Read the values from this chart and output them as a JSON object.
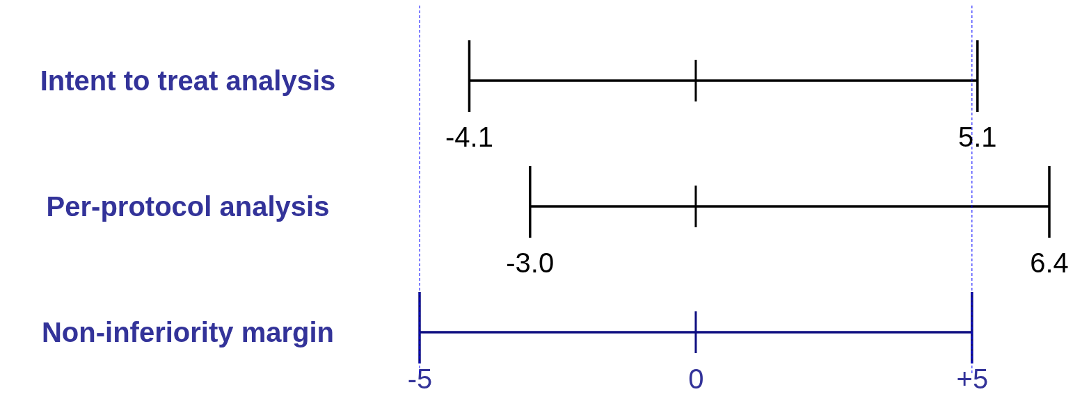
{
  "chart_data": {
    "type": "bar",
    "orientation": "horizontal",
    "categories": [
      "Intent to treat analysis",
      "Per-protocol analysis",
      "Non-inferiority margin"
    ],
    "series": [
      {
        "type": "bar",
        "base": [
          -4.1,
          -3.0,
          -5
        ],
        "values": [
          9.2,
          9.4,
          10
        ],
        "colors": [
          "#000000",
          "#000000",
          "#0d0d80"
        ]
      }
    ],
    "xlim": [
      -5,
      6.4
    ],
    "grid": false,
    "xticks": [
      -5,
      0,
      {
        "value": 5,
        "label": "+5"
      }
    ],
    "ref_lines": [
      {
        "axis": "x",
        "value": -5,
        "color": "#0000ff",
        "line_style": "dashed"
      },
      {
        "axis": "x",
        "value": 5,
        "color": "#0000ff",
        "line_style": "dashed"
      }
    ],
    "annotations": [
      {
        "text": "-4.1",
        "x": -4.1,
        "y": "Intent to treat analysis"
      },
      {
        "text": "5.1",
        "x": 5.1,
        "y": "Intent to treat analysis"
      },
      {
        "text": "-3.0",
        "x": -3.0,
        "y": "Per-protocol analysis"
      },
      {
        "text": "6.4",
        "x": 6.4,
        "y": "Per-protocol analysis"
      }
    ]
  }
}
